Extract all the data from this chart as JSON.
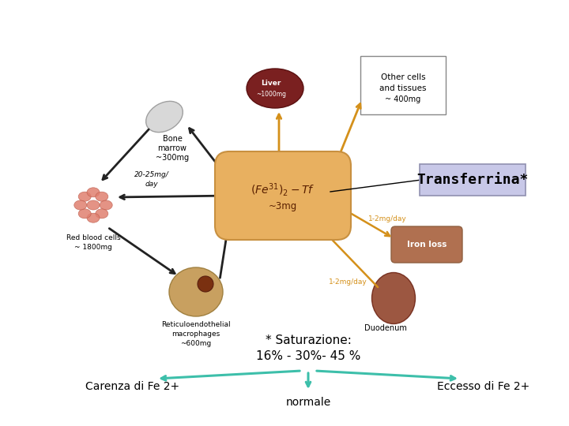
{
  "background_color": "#ffffff",
  "transferrina_label": "Transferrina*",
  "transferrina_box_color": "#c8c8e8",
  "transferrina_box_edge": "#9090b0",
  "sat_label_line1": "* Saturazione:",
  "sat_label_line2": "16% - 30% - 45 %",
  "left_label": "Carenza di Fe 2+",
  "center_label": "normale",
  "right_label": "Eccesso di Fe 2+",
  "arrow_color": "#3dbfaa",
  "text_color": "#000000",
  "orange_arrow": "#d4901a",
  "black_arrow": "#222222"
}
